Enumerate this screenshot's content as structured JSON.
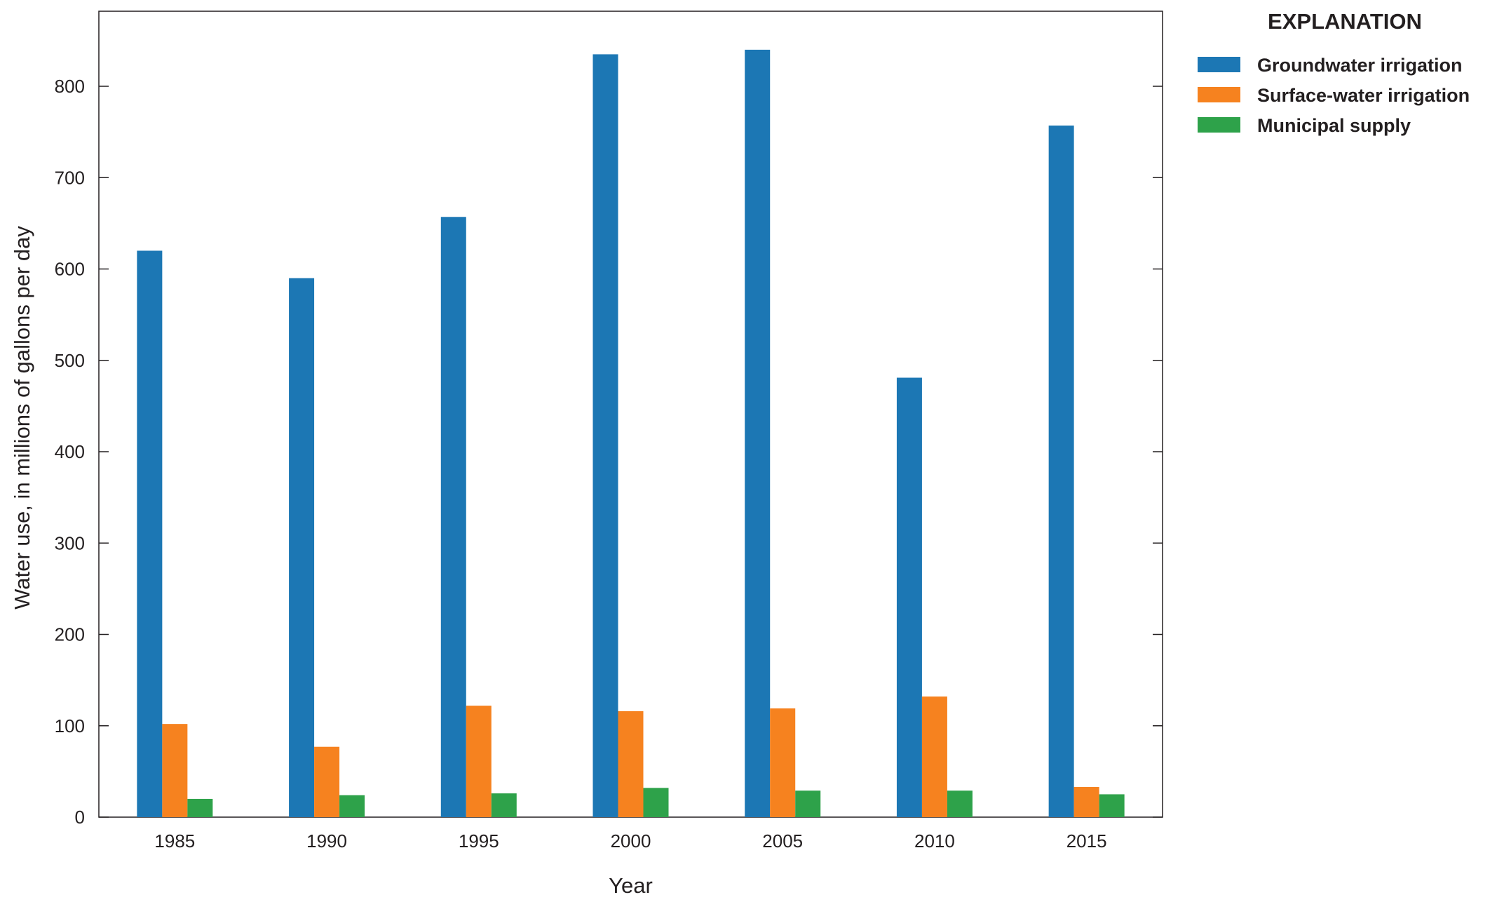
{
  "chart_data": {
    "type": "bar",
    "categories": [
      "1985",
      "1990",
      "1995",
      "2000",
      "2005",
      "2010",
      "2015"
    ],
    "series": [
      {
        "name": "Groundwater irrigation",
        "color": "#1c77b4",
        "values": [
          620,
          590,
          657,
          835,
          840,
          481,
          757
        ]
      },
      {
        "name": "Surface-water irrigation",
        "color": "#f6821f",
        "values": [
          102,
          77,
          122,
          116,
          119,
          132,
          33
        ]
      },
      {
        "name": "Municipal supply",
        "color": "#2ea24a",
        "values": [
          20,
          24,
          26,
          32,
          29,
          29,
          25
        ]
      }
    ],
    "xlabel": "Year",
    "ylabel": "Water use, in millions of gallons per day",
    "ylim": [
      0,
      840
    ],
    "yticks": [
      0,
      100,
      200,
      300,
      400,
      500,
      600,
      700,
      800
    ],
    "grid": false,
    "legend_title": "EXPLANATION",
    "legend_position": "right"
  }
}
